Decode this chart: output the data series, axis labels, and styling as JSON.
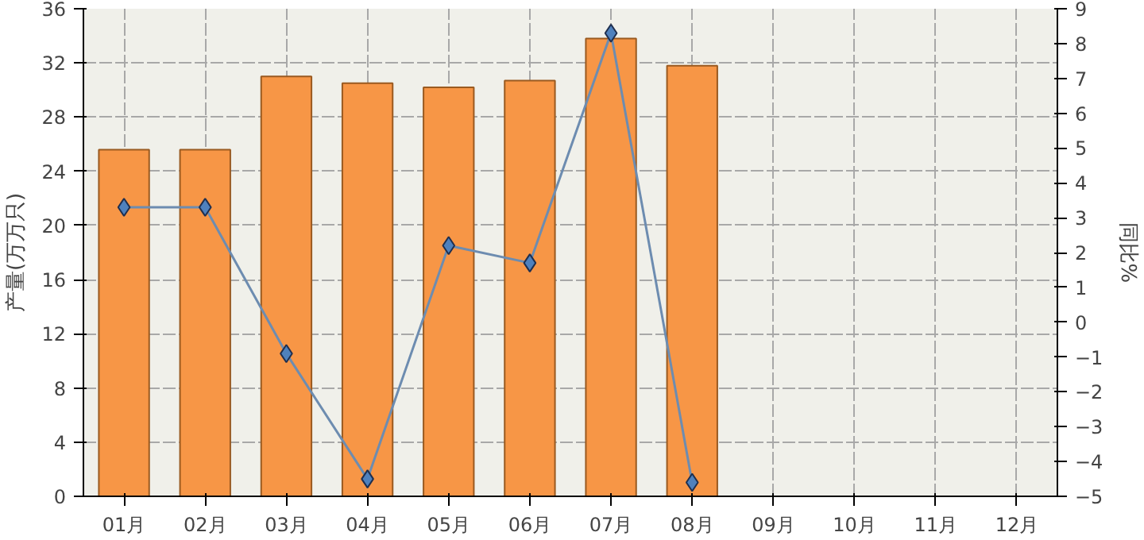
{
  "chart_data": {
    "type": "bar",
    "ylabel": "产量(万万只)",
    "y2label": "同比%",
    "categories": [
      "01月",
      "02月",
      "03月",
      "04月",
      "05月",
      "06月",
      "07月",
      "08月",
      "09月",
      "10月",
      "11月",
      "12月"
    ],
    "series": [
      {
        "color": "#f79646",
        "values": [
          25.6,
          25.6,
          31.0,
          30.5,
          30.2,
          30.7,
          33.8,
          31.8,
          null,
          null,
          null,
          null
        ]
      },
      {
        "type": "line",
        "axis": "y2",
        "color": "#4f81bd",
        "marker": "diamond",
        "values": [
          3.3,
          3.3,
          -0.9,
          -4.5,
          2.2,
          1.7,
          8.3,
          -4.6,
          null,
          null,
          null,
          null
        ]
      }
    ],
    "ylim": [
      0,
      36
    ],
    "yticks": [
      0,
      4,
      8,
      12,
      16,
      20,
      24,
      28,
      32,
      36
    ],
    "y2lim": [
      -5,
      9
    ],
    "y2ticks": [
      -5,
      -4,
      -3,
      -2,
      -1,
      0,
      1,
      2,
      3,
      4,
      5,
      6,
      7,
      8,
      9
    ],
    "grid": true
  }
}
